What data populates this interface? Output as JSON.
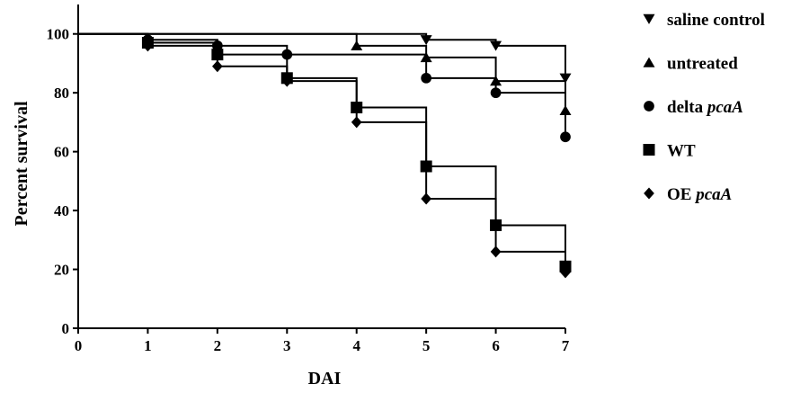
{
  "chart_data": {
    "type": "line",
    "title": "",
    "xlabel": "DAI",
    "ylabel": "Percent survival",
    "xlim": [
      0,
      7
    ],
    "ylim": [
      0,
      110
    ],
    "x_ticks": [
      "0",
      "1",
      "2",
      "3",
      "4",
      "5",
      "6",
      "7"
    ],
    "y_ticks": [
      "0",
      "20",
      "40",
      "60",
      "80",
      "100"
    ],
    "step": true,
    "legend_position": "right",
    "series": [
      {
        "name": "saline control",
        "name_parts": [
          {
            "text": "saline control",
            "italic": false
          }
        ],
        "marker": "triangle-down",
        "steps": [
          [
            0,
            100
          ],
          [
            5,
            98
          ],
          [
            6,
            96
          ],
          [
            7,
            85
          ]
        ],
        "points": [
          [
            5,
            98
          ],
          [
            6,
            96
          ],
          [
            7,
            85
          ]
        ]
      },
      {
        "name": "untreated",
        "name_parts": [
          {
            "text": "untreated",
            "italic": false
          }
        ],
        "marker": "triangle-up",
        "steps": [
          [
            0,
            100
          ],
          [
            4,
            96
          ],
          [
            5,
            92
          ],
          [
            6,
            84
          ],
          [
            7,
            74
          ]
        ],
        "points": [
          [
            4,
            96
          ],
          [
            5,
            92
          ],
          [
            6,
            84
          ],
          [
            7,
            74
          ]
        ]
      },
      {
        "name": "delta pcaA",
        "name_parts": [
          {
            "text": "delta ",
            "italic": false
          },
          {
            "text": "pcaA",
            "italic": true
          }
        ],
        "marker": "circle",
        "steps": [
          [
            0,
            100
          ],
          [
            1,
            98
          ],
          [
            2,
            96
          ],
          [
            3,
            93
          ],
          [
            5,
            85
          ],
          [
            6,
            80
          ],
          [
            7,
            65
          ]
        ],
        "points": [
          [
            1,
            98
          ],
          [
            2,
            96
          ],
          [
            3,
            93
          ],
          [
            5,
            85
          ],
          [
            6,
            80
          ],
          [
            7,
            65
          ]
        ]
      },
      {
        "name": "WT",
        "name_parts": [
          {
            "text": "WT",
            "italic": false
          }
        ],
        "marker": "square",
        "steps": [
          [
            0,
            100
          ],
          [
            1,
            97
          ],
          [
            2,
            93
          ],
          [
            3,
            85
          ],
          [
            4,
            75
          ],
          [
            5,
            55
          ],
          [
            6,
            35
          ],
          [
            7,
            21
          ]
        ],
        "points": [
          [
            1,
            97
          ],
          [
            2,
            93
          ],
          [
            3,
            85
          ],
          [
            4,
            75
          ],
          [
            5,
            55
          ],
          [
            6,
            35
          ],
          [
            7,
            21
          ]
        ]
      },
      {
        "name": "OE pcaA",
        "name_parts": [
          {
            "text": "OE ",
            "italic": false
          },
          {
            "text": "pcaA",
            "italic": true
          }
        ],
        "marker": "diamond",
        "steps": [
          [
            0,
            100
          ],
          [
            1,
            96
          ],
          [
            2,
            89
          ],
          [
            3,
            84
          ],
          [
            4,
            70
          ],
          [
            5,
            44
          ],
          [
            6,
            26
          ],
          [
            7,
            19
          ]
        ],
        "points": [
          [
            1,
            96
          ],
          [
            2,
            89
          ],
          [
            3,
            84
          ],
          [
            4,
            70
          ],
          [
            5,
            44
          ],
          [
            6,
            26
          ],
          [
            7,
            19
          ]
        ]
      }
    ]
  }
}
